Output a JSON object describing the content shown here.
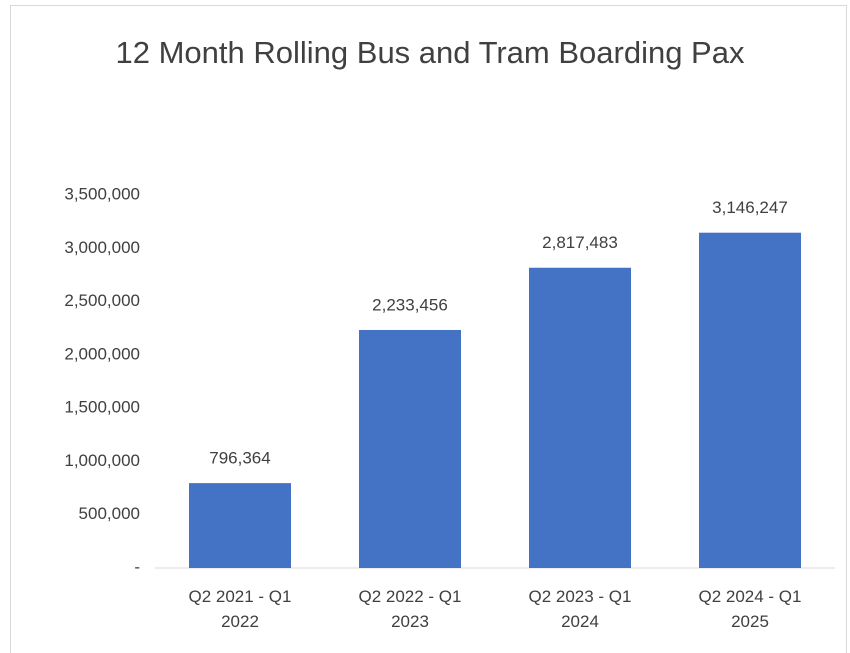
{
  "chart_data": {
    "type": "bar",
    "title": "12 Month Rolling Bus and Tram Boarding Pax",
    "categories": [
      "Q2 2021 - Q1 2022",
      "Q2 2022 - Q1 2023",
      "Q2 2023 - Q1 2024",
      "Q2 2024 - Q1 2025"
    ],
    "values": [
      796364,
      2233456,
      2817483,
      3146247
    ],
    "value_labels": [
      "796,364",
      "2,233,456",
      "2,817,483",
      "3,146,247"
    ],
    "color": "#4472c4",
    "ylim": [
      0,
      3500000
    ],
    "yticks": [
      {
        "value": 0,
        "label": "-"
      },
      {
        "value": 500000,
        "label": "500,000"
      },
      {
        "value": 1000000,
        "label": "1,000,000"
      },
      {
        "value": 1500000,
        "label": "1,500,000"
      },
      {
        "value": 2000000,
        "label": "2,000,000"
      },
      {
        "value": 2500000,
        "label": "2,500,000"
      },
      {
        "value": 3000000,
        "label": "3,000,000"
      },
      {
        "value": 3500000,
        "label": "3,500,000"
      }
    ],
    "grid": false
  }
}
